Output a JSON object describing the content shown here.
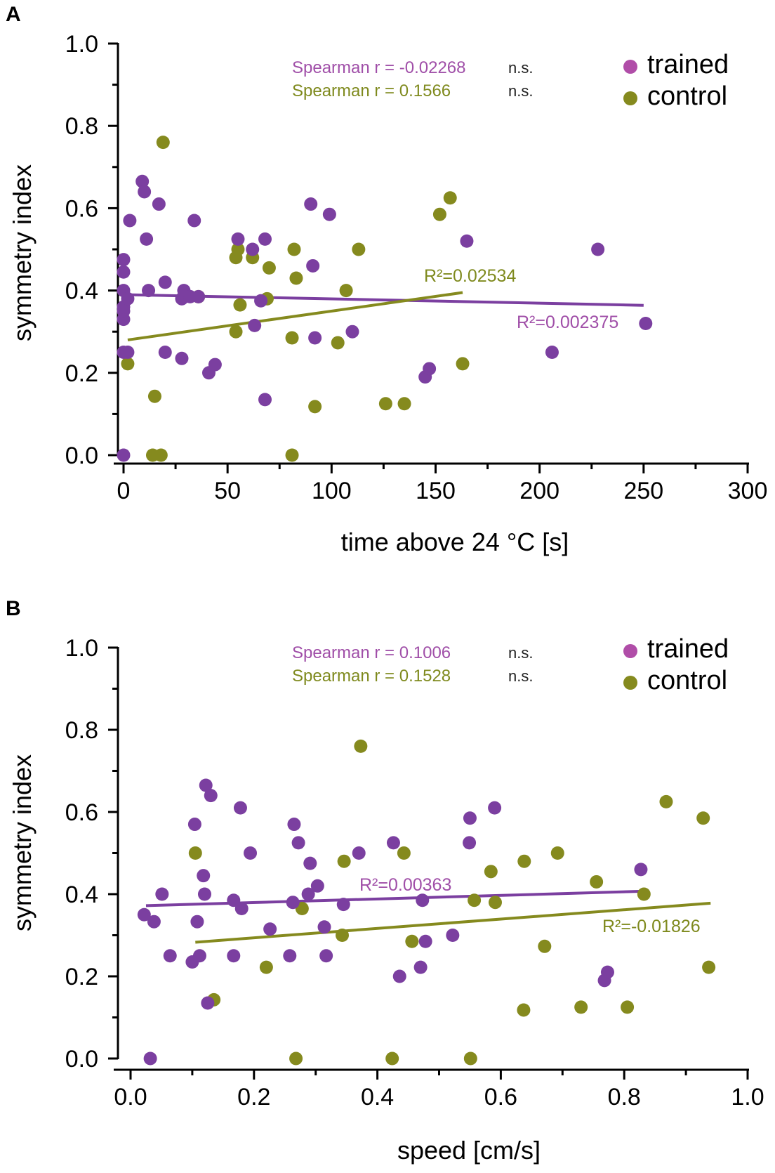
{
  "colors": {
    "trained": "#7B3FA0",
    "control": "#858A1E",
    "trained_text": "#A04FA8",
    "control_text": "#7F8A1E",
    "trained_legend": "#B04DA8"
  },
  "chart_data": [
    {
      "type": "scatter",
      "panel": "A",
      "xlabel": "time above 24 °C [s]",
      "ylabel": "symmetry index",
      "xlim": [
        -5,
        300
      ],
      "ylim": [
        0,
        1.0
      ],
      "xticks": [
        "0",
        "50",
        "100",
        "150",
        "200",
        "250",
        "300"
      ],
      "yticks": [
        "0.0",
        "0.2",
        "0.4",
        "0.6",
        "0.8",
        "1.0"
      ],
      "legend": {
        "position": "top-right",
        "trained": "trained",
        "control": "control"
      },
      "stats": [
        {
          "series": "trained",
          "text": "Spearman r = -0.02268",
          "sig": "n.s."
        },
        {
          "series": "control",
          "text": "Spearman r = 0.1566",
          "sig": "n.s."
        }
      ],
      "series": [
        {
          "name": "trained",
          "points": [
            [
              0,
              0
            ],
            [
              0,
              0.25
            ],
            [
              2,
              0.25
            ],
            [
              0,
              0.33
            ],
            [
              0,
              0.35
            ],
            [
              0,
              0.36
            ],
            [
              0,
              0.4
            ],
            [
              0,
              0.445
            ],
            [
              0,
              0.475
            ],
            [
              2,
              0.38
            ],
            [
              3,
              0.57
            ],
            [
              9,
              0.665
            ],
            [
              10,
              0.64
            ],
            [
              11,
              0.525
            ],
            [
              12,
              0.4
            ],
            [
              17,
              0.61
            ],
            [
              20,
              0.42
            ],
            [
              20,
              0.25
            ],
            [
              28,
              0.235
            ],
            [
              28,
              0.38
            ],
            [
              29,
              0.4
            ],
            [
              32,
              0.385
            ],
            [
              34,
              0.57
            ],
            [
              36,
              0.385
            ],
            [
              41,
              0.2
            ],
            [
              44,
              0.22
            ],
            [
              55,
              0.525
            ],
            [
              62,
              0.5
            ],
            [
              63,
              0.315
            ],
            [
              66,
              0.375
            ],
            [
              68,
              0.525
            ],
            [
              68,
              0.135
            ],
            [
              90,
              0.61
            ],
            [
              91,
              0.46
            ],
            [
              92,
              0.285
            ],
            [
              99,
              0.585
            ],
            [
              110,
              0.3
            ],
            [
              145,
              0.19
            ],
            [
              147,
              0.21
            ],
            [
              165,
              0.52
            ],
            [
              206,
              0.25
            ],
            [
              228,
              0.5
            ],
            [
              251,
              0.32
            ]
          ],
          "fit": {
            "x": [
              0,
              250
            ],
            "y": [
              0.39,
              0.364
            ],
            "label": "R²=0.002375"
          }
        },
        {
          "name": "control",
          "points": [
            [
              2,
              0.222
            ],
            [
              14,
              0.0
            ],
            [
              15,
              0.143
            ],
            [
              18,
              0.0
            ],
            [
              19,
              0.76
            ],
            [
              36,
              0.385
            ],
            [
              54,
              0.3
            ],
            [
              54,
              0.48
            ],
            [
              55,
              0.5
            ],
            [
              56,
              0.365
            ],
            [
              62,
              0.48
            ],
            [
              69,
              0.38
            ],
            [
              70,
              0.455
            ],
            [
              81,
              0.0
            ],
            [
              81,
              0.285
            ],
            [
              82,
              0.5
            ],
            [
              83,
              0.43
            ],
            [
              92,
              0.118
            ],
            [
              103,
              0.273
            ],
            [
              107,
              0.4
            ],
            [
              113,
              0.5
            ],
            [
              126,
              0.125
            ],
            [
              135,
              0.125
            ],
            [
              152,
              0.585
            ],
            [
              157,
              0.625
            ],
            [
              163,
              0.222
            ]
          ],
          "fit": {
            "x": [
              2,
              163
            ],
            "y": [
              0.28,
              0.395
            ],
            "label": "R²=0.02534"
          }
        }
      ]
    },
    {
      "type": "scatter",
      "panel": "B",
      "xlabel": "speed [cm/s]",
      "ylabel": "symmetry index",
      "xlim": [
        -0.02,
        1.0
      ],
      "ylim": [
        0,
        1.0
      ],
      "xticks": [
        "0.0",
        "0.2",
        "0.4",
        "0.6",
        "0.8",
        "1.0"
      ],
      "yticks": [
        "0.0",
        "0.2",
        "0.4",
        "0.6",
        "0.8",
        "1.0"
      ],
      "legend": {
        "position": "top-right",
        "trained": "trained",
        "control": "control"
      },
      "stats": [
        {
          "series": "trained",
          "text": "Spearman r = 0.1006",
          "sig": "n.s."
        },
        {
          "series": "control",
          "text": "Spearman r = 0.1528",
          "sig": "n.s."
        }
      ],
      "series": [
        {
          "name": "trained",
          "points": [
            [
              0.022,
              0.35
            ],
            [
              0.032,
              0.0
            ],
            [
              0.038,
              0.333
            ],
            [
              0.051,
              0.4
            ],
            [
              0.064,
              0.25
            ],
            [
              0.1,
              0.235
            ],
            [
              0.104,
              0.57
            ],
            [
              0.108,
              0.333
            ],
            [
              0.112,
              0.25
            ],
            [
              0.118,
              0.445
            ],
            [
              0.12,
              0.4
            ],
            [
              0.122,
              0.665
            ],
            [
              0.125,
              0.135
            ],
            [
              0.13,
              0.64
            ],
            [
              0.167,
              0.385
            ],
            [
              0.167,
              0.25
            ],
            [
              0.178,
              0.61
            ],
            [
              0.18,
              0.365
            ],
            [
              0.194,
              0.5
            ],
            [
              0.226,
              0.315
            ],
            [
              0.258,
              0.25
            ],
            [
              0.263,
              0.38
            ],
            [
              0.265,
              0.57
            ],
            [
              0.272,
              0.525
            ],
            [
              0.288,
              0.4
            ],
            [
              0.291,
              0.475
            ],
            [
              0.303,
              0.42
            ],
            [
              0.314,
              0.32
            ],
            [
              0.317,
              0.25
            ],
            [
              0.345,
              0.375
            ],
            [
              0.37,
              0.5
            ],
            [
              0.426,
              0.525
            ],
            [
              0.436,
              0.2
            ],
            [
              0.47,
              0.222
            ],
            [
              0.473,
              0.385
            ],
            [
              0.478,
              0.285
            ],
            [
              0.522,
              0.3
            ],
            [
              0.549,
              0.525
            ],
            [
              0.55,
              0.585
            ],
            [
              0.59,
              0.61
            ],
            [
              0.768,
              0.19
            ],
            [
              0.773,
              0.21
            ],
            [
              0.827,
              0.46
            ]
          ],
          "fit": {
            "x": [
              0.025,
              0.83
            ],
            "y": [
              0.372,
              0.407
            ],
            "label": "R²=0.00363"
          }
        },
        {
          "name": "control",
          "points": [
            [
              0.105,
              0.5
            ],
            [
              0.135,
              0.143
            ],
            [
              0.22,
              0.222
            ],
            [
              0.268,
              0.0
            ],
            [
              0.278,
              0.365
            ],
            [
              0.343,
              0.3
            ],
            [
              0.346,
              0.48
            ],
            [
              0.373,
              0.76
            ],
            [
              0.424,
              0.0
            ],
            [
              0.443,
              0.5
            ],
            [
              0.456,
              0.285
            ],
            [
              0.551,
              0.0
            ],
            [
              0.557,
              0.385
            ],
            [
              0.584,
              0.455
            ],
            [
              0.591,
              0.38
            ],
            [
              0.637,
              0.118
            ],
            [
              0.638,
              0.48
            ],
            [
              0.671,
              0.273
            ],
            [
              0.692,
              0.5
            ],
            [
              0.73,
              0.125
            ],
            [
              0.755,
              0.43
            ],
            [
              0.805,
              0.125
            ],
            [
              0.832,
              0.4
            ],
            [
              0.868,
              0.625
            ],
            [
              0.928,
              0.585
            ],
            [
              0.937,
              0.222
            ]
          ],
          "fit": {
            "x": [
              0.105,
              0.94
            ],
            "y": [
              0.283,
              0.378
            ],
            "label": "R²=-0.01826"
          }
        }
      ]
    }
  ]
}
